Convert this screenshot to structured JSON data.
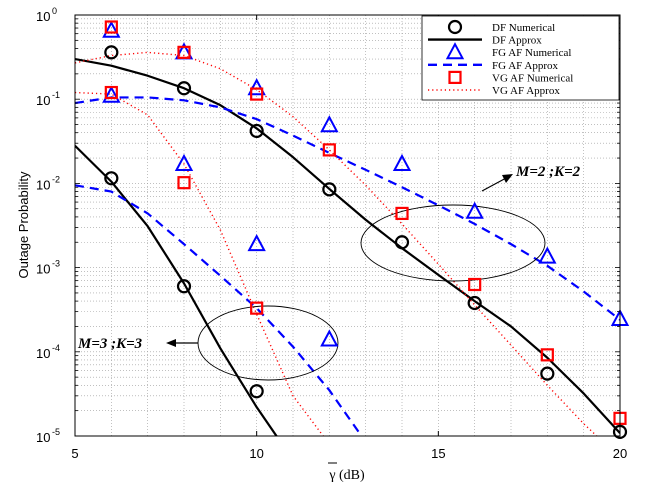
{
  "chart_data": {
    "type": "line",
    "xlabel": "γ (dB)",
    "ylabel": "Outage Probability",
    "xlim": [
      5,
      20
    ],
    "ylim": [
      1e-05,
      1
    ],
    "yscale": "log",
    "grid": true,
    "legend_position": "top-right",
    "x_ticks": [
      "5",
      "10",
      "15",
      "20"
    ],
    "y_ticks": [
      {
        "base": "10",
        "exp": "0",
        "value": 1
      },
      {
        "base": "10",
        "exp": "-1",
        "value": 0.1
      },
      {
        "base": "10",
        "exp": "-2",
        "value": 0.01
      },
      {
        "base": "10",
        "exp": "-3",
        "value": 0.001
      },
      {
        "base": "10",
        "exp": "-4",
        "value": 0.0001
      },
      {
        "base": "10",
        "exp": "-5",
        "value": 1e-05
      }
    ],
    "legend": [
      {
        "label": "DF Numerical",
        "style": "circle"
      },
      {
        "label": "DF Approx",
        "style": "solid"
      },
      {
        "label": "FG AF Numerical",
        "style": "triangle"
      },
      {
        "label": "FG AF Approx",
        "style": "dashed"
      },
      {
        "label": "VG AF Numerical",
        "style": "square"
      },
      {
        "label": "VG AF Approx",
        "style": "dotted"
      }
    ],
    "colors": {
      "DF": "#000000",
      "FG": "#0000ff",
      "VG": "#ff0000"
    },
    "annotations": [
      {
        "text": "M=2 ;K=2",
        "near": [
          14.5,
          0.0017
        ]
      },
      {
        "text": "M=3 ;K=3",
        "near": [
          9.5,
          0.00014
        ]
      }
    ],
    "series": [
      {
        "name": "DF Numerical",
        "group": "M=2 ;K=2",
        "marker": "circle",
        "color": "#000000",
        "x": [
          6,
          8,
          10,
          12,
          14,
          16,
          18,
          20
        ],
        "y": [
          0.36,
          0.135,
          0.042,
          0.0085,
          0.002,
          0.00038,
          5.5e-05,
          1.12e-05
        ]
      },
      {
        "name": "DF Approx",
        "group": "M=2 ;K=2",
        "line": "solid",
        "color": "#000000",
        "x": [
          5,
          6,
          7,
          8,
          9,
          10,
          11,
          12,
          13,
          14,
          15,
          16,
          17,
          18,
          19,
          20
        ],
        "y": [
          0.3,
          0.25,
          0.19,
          0.135,
          0.085,
          0.045,
          0.0205,
          0.0086,
          0.0037,
          0.0017,
          0.00082,
          0.0004,
          0.0002,
          8.5e-05,
          3.2e-05,
          1.08e-05
        ]
      },
      {
        "name": "FG AF Numerical",
        "group": "M=2 ;K=2",
        "marker": "triangle",
        "color": "#0000ff",
        "x": [
          6,
          8,
          10,
          12,
          14,
          16,
          18,
          20
        ],
        "y": [
          0.65,
          0.36,
          0.135,
          0.049,
          0.017,
          0.0046,
          0.00135,
          0.000245
        ]
      },
      {
        "name": "FG AF Approx",
        "group": "M=2 ;K=2",
        "line": "dashed",
        "color": "#0000ff",
        "x": [
          5,
          6,
          7,
          8,
          9,
          10,
          11,
          12,
          13,
          14,
          15,
          16,
          17,
          18,
          19,
          20
        ],
        "y": [
          0.09,
          0.105,
          0.105,
          0.097,
          0.08,
          0.058,
          0.037,
          0.023,
          0.0145,
          0.009,
          0.0055,
          0.0033,
          0.0019,
          0.00105,
          0.00052,
          0.00024
        ]
      },
      {
        "name": "VG AF Numerical",
        "group": "M=2 ;K=2",
        "marker": "square",
        "color": "#ff0000",
        "x": [
          6,
          8,
          10,
          12,
          14,
          16,
          18,
          20
        ],
        "y": [
          0.72,
          0.36,
          0.115,
          0.025,
          0.0044,
          0.00063,
          9.2e-05,
          1.62e-05
        ]
      },
      {
        "name": "VG AF Approx",
        "group": "M=2 ;K=2",
        "line": "dotted",
        "color": "#ff0000",
        "x": [
          5,
          6,
          7,
          8,
          9,
          10,
          11,
          12,
          13,
          14,
          15,
          16,
          17,
          18,
          19,
          20
        ],
        "y": [
          0.27,
          0.33,
          0.36,
          0.33,
          0.23,
          0.13,
          0.062,
          0.025,
          0.0095,
          0.0033,
          0.0011,
          0.00036,
          0.00012,
          4e-05,
          1.4e-05,
          5.5e-06
        ]
      },
      {
        "name": "DF Numerical",
        "group": "M=3 ;K=3",
        "marker": "circle",
        "color": "#000000",
        "x": [
          6,
          8,
          10
        ],
        "y": [
          0.0115,
          0.0006,
          3.4e-05
        ]
      },
      {
        "name": "DF Approx",
        "group": "M=3 ;K=3",
        "line": "solid",
        "color": "#000000",
        "x": [
          5,
          6,
          7,
          8,
          9,
          10,
          10.7
        ],
        "y": [
          0.028,
          0.0105,
          0.0031,
          0.00065,
          0.00011,
          2.2e-05,
          8e-06
        ]
      },
      {
        "name": "FG AF Numerical",
        "group": "M=3 ;K=3",
        "marker": "triangle",
        "color": "#0000ff",
        "x": [
          6,
          8,
          10,
          12
        ],
        "y": [
          0.11,
          0.017,
          0.0019,
          0.00014
        ]
      },
      {
        "name": "FG AF Approx",
        "group": "M=3 ;K=3",
        "line": "dashed",
        "color": "#0000ff",
        "x": [
          5,
          6,
          7,
          8,
          9,
          10,
          11,
          12,
          13
        ],
        "y": [
          0.0095,
          0.008,
          0.0044,
          0.0019,
          0.0008,
          0.00033,
          0.000115,
          3.5e-05,
          8.5e-06
        ]
      },
      {
        "name": "VG AF Numerical",
        "group": "M=3 ;K=3",
        "marker": "square",
        "color": "#ff0000",
        "x": [
          6,
          8,
          10
        ],
        "y": [
          0.12,
          0.0102,
          0.00033
        ]
      },
      {
        "name": "VG AF Approx",
        "group": "M=3 ;K=3",
        "line": "dotted",
        "color": "#ff0000",
        "x": [
          5,
          6,
          7,
          8,
          9,
          10,
          11,
          12
        ],
        "y": [
          0.12,
          0.115,
          0.065,
          0.017,
          0.0028,
          0.00028,
          3e-05,
          8e-06
        ]
      }
    ]
  }
}
